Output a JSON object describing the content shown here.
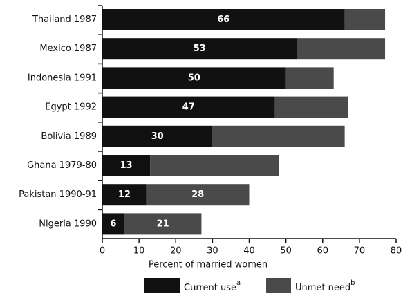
{
  "chart_data": {
    "type": "bar",
    "orientation": "horizontal",
    "stacked": true,
    "categories": [
      "Thailand 1987",
      "Mexico 1987",
      "Indonesia 1991",
      "Egypt 1992",
      "Bolivia 1989",
      "Ghana 1979-80",
      "Pakistan 1990-91",
      "Nigeria 1990"
    ],
    "series": [
      {
        "name": "Current use",
        "footnote_mark": "a",
        "color": "#111111",
        "values": [
          66,
          53,
          50,
          47,
          30,
          13,
          12,
          6
        ]
      },
      {
        "name": "Unmet need",
        "footnote_mark": "b",
        "color": "#4a4a4a",
        "values": [
          11,
          24,
          13,
          20,
          36,
          35,
          28,
          21
        ],
        "value_labels": [
          null,
          null,
          null,
          null,
          null,
          null,
          "28",
          "21"
        ]
      }
    ],
    "xlabel": "Percent of married women",
    "xlim": [
      0,
      80
    ],
    "xticks": [
      0,
      10,
      20,
      30,
      40,
      50,
      60,
      70,
      80
    ]
  }
}
